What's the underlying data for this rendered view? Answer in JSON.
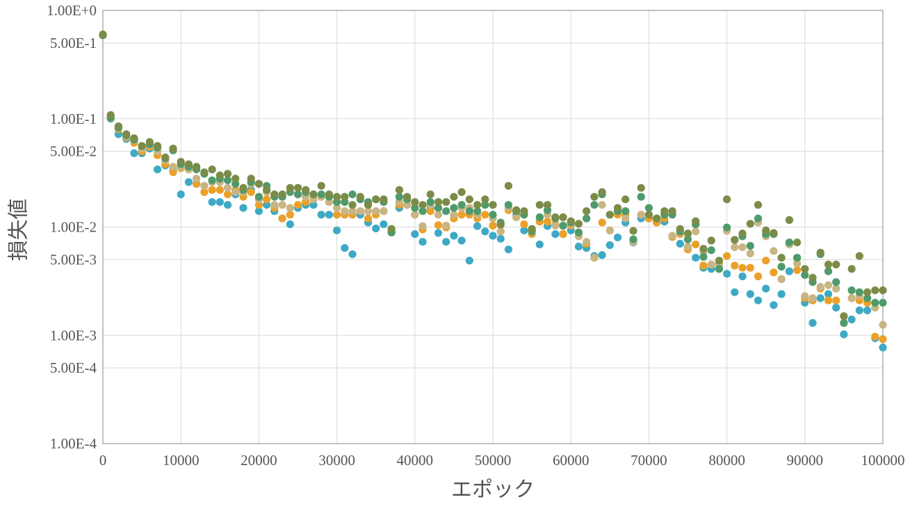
{
  "chart_data": {
    "type": "scatter",
    "title": "",
    "xlabel": "エポック",
    "ylabel": "損失値",
    "xlim": [
      0,
      100000
    ],
    "ylim": [
      0.0001,
      1
    ],
    "yscale": "log",
    "grid": true,
    "x_ticks": [
      {
        "value": 0,
        "label": "0"
      },
      {
        "value": 10000,
        "label": "10000"
      },
      {
        "value": 20000,
        "label": "20000"
      },
      {
        "value": 30000,
        "label": "30000"
      },
      {
        "value": 40000,
        "label": "40000"
      },
      {
        "value": 50000,
        "label": "50000"
      },
      {
        "value": 60000,
        "label": "60000"
      },
      {
        "value": 70000,
        "label": "70000"
      },
      {
        "value": 80000,
        "label": "80000"
      },
      {
        "value": 90000,
        "label": "90000"
      },
      {
        "value": 100000,
        "label": "100000"
      }
    ],
    "y_ticks": [
      {
        "value": 1,
        "label": "1.00E+0"
      },
      {
        "value": 0.5,
        "label": "5.00E-1"
      },
      {
        "value": 0.1,
        "label": "1.00E-1"
      },
      {
        "value": 0.05,
        "label": "5.00E-2"
      },
      {
        "value": 0.01,
        "label": "1.00E-2"
      },
      {
        "value": 0.005,
        "label": "5.00E-3"
      },
      {
        "value": 0.001,
        "label": "1.00E-3"
      },
      {
        "value": 0.0005,
        "label": "5.00E-4"
      },
      {
        "value": 0.0001,
        "label": "1.00E-4"
      }
    ],
    "x": [
      0,
      1000,
      2000,
      3000,
      4000,
      5000,
      6000,
      7000,
      8000,
      9000,
      10000,
      11000,
      12000,
      13000,
      14000,
      15000,
      16000,
      17000,
      18000,
      19000,
      20000,
      21000,
      22000,
      23000,
      24000,
      25000,
      26000,
      27000,
      28000,
      29000,
      30000,
      31000,
      32000,
      33000,
      34000,
      35000,
      36000,
      37000,
      38000,
      39000,
      40000,
      41000,
      42000,
      43000,
      44000,
      45000,
      46000,
      47000,
      48000,
      49000,
      50000,
      51000,
      52000,
      53000,
      54000,
      55000,
      56000,
      57000,
      58000,
      59000,
      60000,
      61000,
      62000,
      63000,
      64000,
      65000,
      66000,
      67000,
      68000,
      69000,
      70000,
      71000,
      72000,
      73000,
      74000,
      75000,
      76000,
      77000,
      78000,
      79000,
      80000,
      81000,
      82000,
      83000,
      84000,
      85000,
      86000,
      87000,
      88000,
      89000,
      90000,
      91000,
      92000,
      93000,
      94000,
      95000,
      96000,
      97000,
      98000,
      99000,
      100000
    ],
    "series": [
      {
        "color": "#3ea9c4",
        "values": [
          0.59,
          0.1,
          0.072,
          0.065,
          0.048,
          0.048,
          0.053,
          0.034,
          0.037,
          0.033,
          0.02,
          0.026,
          0.025,
          0.024,
          0.017,
          0.017,
          0.016,
          0.02,
          0.015,
          0.022,
          0.014,
          0.016,
          0.014,
          0.012,
          0.0106,
          0.015,
          0.016,
          0.016,
          0.013,
          0.013,
          0.0093,
          0.0064,
          0.0056,
          0.013,
          0.011,
          0.0097,
          0.0106,
          0.0091,
          0.015,
          0.016,
          0.0086,
          0.0073,
          0.015,
          0.0088,
          0.0073,
          0.0083,
          0.0075,
          0.0049,
          0.0102,
          0.0091,
          0.0083,
          0.0078,
          0.0062,
          0.013,
          0.0093,
          0.0093,
          0.0069,
          0.0102,
          0.0086,
          0.0086,
          0.0093,
          0.0066,
          0.0064,
          0.0054,
          0.0055,
          0.0068,
          0.008,
          0.011,
          0.0072,
          0.012,
          0.012,
          0.011,
          0.0112,
          0.0081,
          0.007,
          0.0063,
          0.0052,
          0.0042,
          0.0041,
          0.0041,
          0.0037,
          0.0025,
          0.0035,
          0.0024,
          0.0021,
          0.0027,
          0.0019,
          0.0024,
          0.0039,
          0.0052,
          0.002,
          0.0013,
          0.0022,
          0.0024,
          0.0018,
          0.00102,
          0.0014,
          0.0017,
          0.0017,
          0.00094,
          0.00077
        ]
      },
      {
        "color": "#eba027",
        "values": [
          0.59,
          0.102,
          0.08,
          0.067,
          0.06,
          0.05,
          0.055,
          0.046,
          0.038,
          0.032,
          0.035,
          0.034,
          0.025,
          0.021,
          0.022,
          0.022,
          0.02,
          0.022,
          0.019,
          0.021,
          0.016,
          0.018,
          0.015,
          0.012,
          0.013,
          0.016,
          0.017,
          0.018,
          0.019,
          0.017,
          0.013,
          0.013,
          0.013,
          0.014,
          0.012,
          0.013,
          0.014,
          0.0089,
          0.016,
          0.016,
          0.013,
          0.0095,
          0.014,
          0.0104,
          0.0099,
          0.012,
          0.013,
          0.013,
          0.012,
          0.013,
          0.0103,
          0.0091,
          0.0143,
          0.0123,
          0.0106,
          0.0086,
          0.0112,
          0.0112,
          0.0106,
          0.0086,
          0.0103,
          0.0089,
          0.007,
          0.0052,
          0.011,
          0.0093,
          0.013,
          0.013,
          0.0075,
          0.013,
          0.012,
          0.011,
          0.012,
          0.0081,
          0.0086,
          0.0062,
          0.0069,
          0.0044,
          0.0045,
          0.0047,
          0.0054,
          0.0044,
          0.0042,
          0.0042,
          0.0035,
          0.0049,
          0.0038,
          0.0033,
          0.0069,
          0.004,
          0.0022,
          0.0021,
          0.0027,
          0.0021,
          0.0021,
          0.0015,
          0.0022,
          0.0021,
          0.002,
          0.00097,
          0.00092
        ]
      },
      {
        "color": "#c9b584",
        "values": [
          0.6,
          0.105,
          0.082,
          0.068,
          0.063,
          0.053,
          0.057,
          0.05,
          0.041,
          0.036,
          0.036,
          0.034,
          0.028,
          0.024,
          0.026,
          0.026,
          0.023,
          0.021,
          0.021,
          0.025,
          0.018,
          0.021,
          0.016,
          0.016,
          0.015,
          0.02,
          0.019,
          0.018,
          0.019,
          0.017,
          0.015,
          0.014,
          0.014,
          0.014,
          0.014,
          0.014,
          0.014,
          0.0089,
          0.017,
          0.016,
          0.013,
          0.0102,
          0.016,
          0.013,
          0.0103,
          0.013,
          0.015,
          0.015,
          0.013,
          0.016,
          0.012,
          0.0091,
          0.015,
          0.0123,
          0.013,
          0.0093,
          0.0123,
          0.013,
          0.0103,
          0.0102,
          0.0106,
          0.0082,
          0.0073,
          0.0052,
          0.016,
          0.0093,
          0.014,
          0.012,
          0.0073,
          0.013,
          0.013,
          0.012,
          0.013,
          0.0083,
          0.0089,
          0.0066,
          0.0091,
          0.0059,
          0.0045,
          0.0044,
          0.0092,
          0.0065,
          0.0065,
          0.0057,
          0.011,
          0.0082,
          0.006,
          0.0033,
          0.0069,
          0.0046,
          0.0023,
          0.0022,
          0.0028,
          0.0029,
          0.0027,
          0.0013,
          0.0022,
          0.0023,
          0.0022,
          0.0018,
          0.00125
        ]
      },
      {
        "color": "#4f9a6c",
        "values": [
          0.59,
          0.103,
          0.083,
          0.07,
          0.064,
          0.056,
          0.058,
          0.054,
          0.043,
          0.051,
          0.038,
          0.036,
          0.034,
          0.031,
          0.027,
          0.028,
          0.027,
          0.025,
          0.022,
          0.026,
          0.019,
          0.024,
          0.019,
          0.019,
          0.021,
          0.02,
          0.021,
          0.02,
          0.02,
          0.019,
          0.017,
          0.017,
          0.02,
          0.018,
          0.017,
          0.018,
          0.017,
          0.0089,
          0.019,
          0.018,
          0.015,
          0.014,
          0.017,
          0.015,
          0.014,
          0.015,
          0.016,
          0.014,
          0.014,
          0.016,
          0.013,
          0.011,
          0.016,
          0.014,
          0.013,
          0.0091,
          0.0123,
          0.0143,
          0.012,
          0.0103,
          0.011,
          0.0089,
          0.012,
          0.016,
          0.02,
          0.013,
          0.014,
          0.014,
          0.0077,
          0.019,
          0.015,
          0.012,
          0.013,
          0.013,
          0.0091,
          0.0077,
          0.0106,
          0.0053,
          0.0061,
          0.0041,
          0.0099,
          0.0076,
          0.0082,
          0.0067,
          0.012,
          0.0086,
          0.0086,
          0.0043,
          0.0072,
          0.0052,
          0.0036,
          0.0031,
          0.0056,
          0.0039,
          0.0031,
          0.0013,
          0.0026,
          0.0025,
          0.0022,
          0.002,
          0.002
        ]
      },
      {
        "color": "#7a8c48",
        "values": [
          0.6,
          0.108,
          0.085,
          0.072,
          0.066,
          0.056,
          0.061,
          0.056,
          0.044,
          0.053,
          0.04,
          0.038,
          0.036,
          0.032,
          0.034,
          0.03,
          0.031,
          0.028,
          0.023,
          0.028,
          0.025,
          0.022,
          0.02,
          0.02,
          0.023,
          0.023,
          0.022,
          0.02,
          0.024,
          0.02,
          0.019,
          0.019,
          0.016,
          0.019,
          0.016,
          0.018,
          0.018,
          0.0096,
          0.022,
          0.019,
          0.017,
          0.016,
          0.02,
          0.017,
          0.017,
          0.019,
          0.021,
          0.018,
          0.016,
          0.018,
          0.016,
          0.0105,
          0.024,
          0.0143,
          0.014,
          0.0096,
          0.016,
          0.016,
          0.0123,
          0.0123,
          0.0113,
          0.0107,
          0.014,
          0.019,
          0.021,
          0.013,
          0.015,
          0.018,
          0.0092,
          0.023,
          0.013,
          0.012,
          0.014,
          0.014,
          0.0096,
          0.0087,
          0.0113,
          0.0063,
          0.0075,
          0.0049,
          0.018,
          0.0076,
          0.0087,
          0.0107,
          0.016,
          0.0093,
          0.0088,
          0.0052,
          0.0116,
          0.0072,
          0.0041,
          0.0034,
          0.0058,
          0.0045,
          0.0045,
          0.0015,
          0.0041,
          0.0054,
          0.0025,
          0.0026,
          0.0026
        ]
      }
    ]
  }
}
